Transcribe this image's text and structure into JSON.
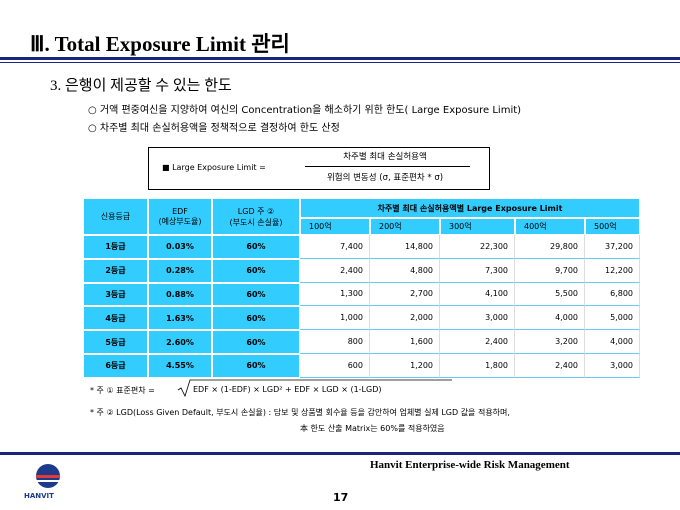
{
  "header": {
    "title": "Ⅲ. Total Exposure Limit 관리"
  },
  "section": {
    "heading": "3. 은행이 제공할 수 있는 한도",
    "bullets": [
      "○ 거액 편중여신을 지양하여 여신의 Concentration을 해소하기 위한 한도( Large Exposure Limit)",
      "○ 차주별 최대 손실허용액을 정책적으로 결정하여 한도 산정"
    ]
  },
  "formula": {
    "label": "■ Large Exposure Limit =",
    "numerator": "차주별 최대 손실허용액",
    "denominator": "위험의 변동성 (σ, 표준편차 * σ)"
  },
  "table": {
    "row_headers": [
      [
        "신용등급"
      ],
      [
        "EDF",
        "(예상부도율)"
      ],
      [
        "LGD 주 ②",
        "(부도시 손실율)"
      ]
    ],
    "group_header": "차주별 최대 손실허용액별 Large Exposure Limit",
    "amounts": [
      "100억",
      "200억",
      "300억",
      "400억",
      "500억"
    ],
    "rows": [
      [
        "1등급",
        "0.03%",
        "60%",
        "7,400",
        "14,800",
        "22,300",
        "29,800",
        "37,200"
      ],
      [
        "2등급",
        "0.28%",
        "60%",
        "2,400",
        "4,800",
        "7,300",
        "9,700",
        "12,200"
      ],
      [
        "3등급",
        "0.88%",
        "60%",
        "1,300",
        "2,700",
        "4,100",
        "5,500",
        "6,800"
      ],
      [
        "4등급",
        "1.63%",
        "60%",
        "1,000",
        "2,000",
        "3,000",
        "4,000",
        "5,000"
      ],
      [
        "5등급",
        "2.60%",
        "60%",
        "800",
        "1,600",
        "2,400",
        "3,200",
        "4,000"
      ],
      [
        "6등급",
        "4.55%",
        "60%",
        "600",
        "1,200",
        "1,800",
        "2,400",
        "3,000"
      ]
    ]
  },
  "notes": {
    "note1_label": "* 주 ①  표준편차 =",
    "note1_formula": "EDF × (1-EDF) × LGD² + EDF × LGD × (1-LGD)",
    "note2": "* 주 ②  LGD(Loss Given Default, 부도시 손실율) : 담보 및 상품별 회수율 등을 감안하여 업체별 실제 LGD 값을 적용하며,",
    "note3": "本 한도 산출 Matrix는 60%를 적용하였음"
  },
  "footer": {
    "logo_text": "HANVIT",
    "company": "Hanvit Enterprise-wide Risk Management",
    "page": "17"
  }
}
